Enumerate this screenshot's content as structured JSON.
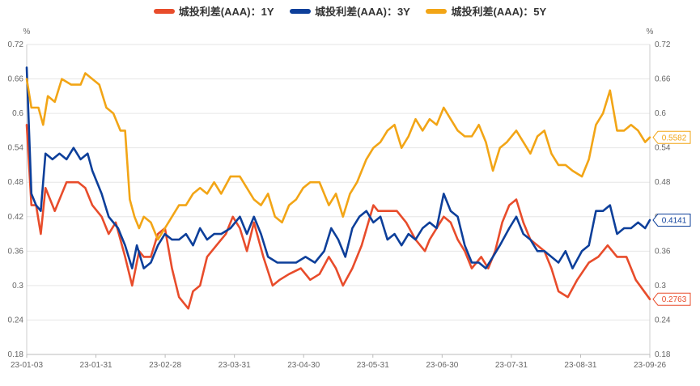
{
  "chart_data": {
    "type": "line",
    "y_unit_left": "%",
    "y_unit_right": "%",
    "ylim": [
      0.18,
      0.72
    ],
    "y_ticks": [
      "0.72",
      "0.66",
      "0.6",
      "0.54",
      "0.48",
      "0.42",
      "0.36",
      "0.3",
      "0.24",
      "0.18"
    ],
    "x_ticks": [
      "23-01-03",
      "23-01-31",
      "23-02-28",
      "23-03-31",
      "23-04-30",
      "23-05-31",
      "23-06-30",
      "23-07-31",
      "23-08-31",
      "23-09-26"
    ],
    "grid": true,
    "legend_position": "top",
    "series": [
      {
        "name": "城投利差(AAA)：1Y",
        "color": "#e84c2b",
        "last_label": "0.2763",
        "values": [
          [
            "2023-01-03",
            0.58
          ],
          [
            "2023-01-05",
            0.44
          ],
          [
            "2023-01-07",
            0.44
          ],
          [
            "2023-01-09",
            0.39
          ],
          [
            "2023-01-11",
            0.47
          ],
          [
            "2023-01-15",
            0.43
          ],
          [
            "2023-01-20",
            0.48
          ],
          [
            "2023-01-25",
            0.48
          ],
          [
            "2023-01-28",
            0.47
          ],
          [
            "2023-01-31",
            0.44
          ],
          [
            "2023-02-04",
            0.42
          ],
          [
            "2023-02-07",
            0.39
          ],
          [
            "2023-02-10",
            0.41
          ],
          [
            "2023-02-14",
            0.35
          ],
          [
            "2023-02-17",
            0.3
          ],
          [
            "2023-02-20",
            0.36
          ],
          [
            "2023-02-22",
            0.35
          ],
          [
            "2023-02-25",
            0.35
          ],
          [
            "2023-02-28",
            0.39
          ],
          [
            "2023-03-03",
            0.4
          ],
          [
            "2023-03-06",
            0.33
          ],
          [
            "2023-03-09",
            0.28
          ],
          [
            "2023-03-11",
            0.27
          ],
          [
            "2023-03-13",
            0.26
          ],
          [
            "2023-03-15",
            0.29
          ],
          [
            "2023-03-18",
            0.3
          ],
          [
            "2023-03-21",
            0.35
          ],
          [
            "2023-03-25",
            0.37
          ],
          [
            "2023-03-29",
            0.39
          ],
          [
            "2023-04-01",
            0.42
          ],
          [
            "2023-04-04",
            0.4
          ],
          [
            "2023-04-07",
            0.36
          ],
          [
            "2023-04-10",
            0.41
          ],
          [
            "2023-04-14",
            0.35
          ],
          [
            "2023-04-18",
            0.3
          ],
          [
            "2023-04-21",
            0.31
          ],
          [
            "2023-04-25",
            0.32
          ],
          [
            "2023-04-30",
            0.33
          ],
          [
            "2023-05-04",
            0.31
          ],
          [
            "2023-05-08",
            0.32
          ],
          [
            "2023-05-12",
            0.35
          ],
          [
            "2023-05-15",
            0.33
          ],
          [
            "2023-05-18",
            0.3
          ],
          [
            "2023-05-22",
            0.33
          ],
          [
            "2023-05-26",
            0.37
          ],
          [
            "2023-05-31",
            0.44
          ],
          [
            "2023-06-02",
            0.43
          ],
          [
            "2023-06-06",
            0.43
          ],
          [
            "2023-06-10",
            0.43
          ],
          [
            "2023-06-14",
            0.41
          ],
          [
            "2023-06-18",
            0.38
          ],
          [
            "2023-06-22",
            0.36
          ],
          [
            "2023-06-24",
            0.38
          ],
          [
            "2023-06-27",
            0.4
          ],
          [
            "2023-06-30",
            0.42
          ],
          [
            "2023-07-03",
            0.41
          ],
          [
            "2023-07-06",
            0.38
          ],
          [
            "2023-07-09",
            0.36
          ],
          [
            "2023-07-12",
            0.33
          ],
          [
            "2023-07-16",
            0.35
          ],
          [
            "2023-07-19",
            0.33
          ],
          [
            "2023-07-22",
            0.36
          ],
          [
            "2023-07-25",
            0.41
          ],
          [
            "2023-07-28",
            0.44
          ],
          [
            "2023-07-31",
            0.45
          ],
          [
            "2023-08-03",
            0.41
          ],
          [
            "2023-08-06",
            0.38
          ],
          [
            "2023-08-09",
            0.37
          ],
          [
            "2023-08-12",
            0.36
          ],
          [
            "2023-08-15",
            0.33
          ],
          [
            "2023-08-18",
            0.29
          ],
          [
            "2023-08-22",
            0.28
          ],
          [
            "2023-08-26",
            0.31
          ],
          [
            "2023-08-31",
            0.34
          ],
          [
            "2023-09-04",
            0.35
          ],
          [
            "2023-09-08",
            0.37
          ],
          [
            "2023-09-12",
            0.35
          ],
          [
            "2023-09-16",
            0.35
          ],
          [
            "2023-09-20",
            0.31
          ],
          [
            "2023-09-26",
            0.2763
          ]
        ]
      },
      {
        "name": "城投利差(AAA)：3Y",
        "color": "#0d3f9a",
        "last_label": "0.4141",
        "values": [
          [
            "2023-01-03",
            0.68
          ],
          [
            "2023-01-05",
            0.46
          ],
          [
            "2023-01-07",
            0.44
          ],
          [
            "2023-01-09",
            0.43
          ],
          [
            "2023-01-11",
            0.53
          ],
          [
            "2023-01-14",
            0.52
          ],
          [
            "2023-01-17",
            0.53
          ],
          [
            "2023-01-20",
            0.52
          ],
          [
            "2023-01-23",
            0.54
          ],
          [
            "2023-01-26",
            0.52
          ],
          [
            "2023-01-29",
            0.53
          ],
          [
            "2023-01-31",
            0.5
          ],
          [
            "2023-02-04",
            0.46
          ],
          [
            "2023-02-07",
            0.42
          ],
          [
            "2023-02-11",
            0.4
          ],
          [
            "2023-02-14",
            0.37
          ],
          [
            "2023-02-17",
            0.33
          ],
          [
            "2023-02-19",
            0.37
          ],
          [
            "2023-02-22",
            0.33
          ],
          [
            "2023-02-25",
            0.34
          ],
          [
            "2023-02-28",
            0.37
          ],
          [
            "2023-03-03",
            0.39
          ],
          [
            "2023-03-06",
            0.38
          ],
          [
            "2023-03-09",
            0.38
          ],
          [
            "2023-03-12",
            0.39
          ],
          [
            "2023-03-15",
            0.37
          ],
          [
            "2023-03-18",
            0.4
          ],
          [
            "2023-03-21",
            0.38
          ],
          [
            "2023-03-24",
            0.39
          ],
          [
            "2023-03-27",
            0.39
          ],
          [
            "2023-03-31",
            0.4
          ],
          [
            "2023-04-04",
            0.42
          ],
          [
            "2023-04-07",
            0.39
          ],
          [
            "2023-04-10",
            0.42
          ],
          [
            "2023-04-13",
            0.39
          ],
          [
            "2023-04-16",
            0.35
          ],
          [
            "2023-04-20",
            0.34
          ],
          [
            "2023-04-24",
            0.34
          ],
          [
            "2023-04-28",
            0.34
          ],
          [
            "2023-05-02",
            0.35
          ],
          [
            "2023-05-06",
            0.34
          ],
          [
            "2023-05-10",
            0.36
          ],
          [
            "2023-05-13",
            0.4
          ],
          [
            "2023-05-16",
            0.38
          ],
          [
            "2023-05-19",
            0.35
          ],
          [
            "2023-05-22",
            0.4
          ],
          [
            "2023-05-25",
            0.42
          ],
          [
            "2023-05-28",
            0.43
          ],
          [
            "2023-05-31",
            0.41
          ],
          [
            "2023-06-03",
            0.42
          ],
          [
            "2023-06-06",
            0.38
          ],
          [
            "2023-06-09",
            0.39
          ],
          [
            "2023-06-12",
            0.37
          ],
          [
            "2023-06-15",
            0.39
          ],
          [
            "2023-06-18",
            0.38
          ],
          [
            "2023-06-21",
            0.4
          ],
          [
            "2023-06-24",
            0.41
          ],
          [
            "2023-06-27",
            0.4
          ],
          [
            "2023-06-30",
            0.46
          ],
          [
            "2023-07-03",
            0.43
          ],
          [
            "2023-07-06",
            0.42
          ],
          [
            "2023-07-09",
            0.37
          ],
          [
            "2023-07-12",
            0.34
          ],
          [
            "2023-07-15",
            0.34
          ],
          [
            "2023-07-18",
            0.33
          ],
          [
            "2023-07-21",
            0.35
          ],
          [
            "2023-07-24",
            0.37
          ],
          [
            "2023-07-28",
            0.4
          ],
          [
            "2023-07-31",
            0.42
          ],
          [
            "2023-08-03",
            0.39
          ],
          [
            "2023-08-06",
            0.38
          ],
          [
            "2023-08-09",
            0.36
          ],
          [
            "2023-08-12",
            0.36
          ],
          [
            "2023-08-15",
            0.35
          ],
          [
            "2023-08-18",
            0.34
          ],
          [
            "2023-08-21",
            0.36
          ],
          [
            "2023-08-24",
            0.33
          ],
          [
            "2023-08-28",
            0.36
          ],
          [
            "2023-08-31",
            0.37
          ],
          [
            "2023-09-03",
            0.43
          ],
          [
            "2023-09-06",
            0.43
          ],
          [
            "2023-09-09",
            0.44
          ],
          [
            "2023-09-12",
            0.39
          ],
          [
            "2023-09-15",
            0.4
          ],
          [
            "2023-09-18",
            0.4
          ],
          [
            "2023-09-21",
            0.41
          ],
          [
            "2023-09-24",
            0.4
          ],
          [
            "2023-09-26",
            0.4141
          ]
        ]
      },
      {
        "name": "城投利差(AAA)：5Y",
        "color": "#f2a516",
        "last_label": "0.5582",
        "values": [
          [
            "2023-01-03",
            0.66
          ],
          [
            "2023-01-05",
            0.61
          ],
          [
            "2023-01-08",
            0.61
          ],
          [
            "2023-01-10",
            0.58
          ],
          [
            "2023-01-12",
            0.63
          ],
          [
            "2023-01-15",
            0.62
          ],
          [
            "2023-01-18",
            0.66
          ],
          [
            "2023-01-22",
            0.65
          ],
          [
            "2023-01-26",
            0.65
          ],
          [
            "2023-01-28",
            0.67
          ],
          [
            "2023-01-31",
            0.66
          ],
          [
            "2023-02-03",
            0.65
          ],
          [
            "2023-02-06",
            0.61
          ],
          [
            "2023-02-09",
            0.6
          ],
          [
            "2023-02-12",
            0.57
          ],
          [
            "2023-02-14",
            0.57
          ],
          [
            "2023-02-16",
            0.45
          ],
          [
            "2023-02-18",
            0.42
          ],
          [
            "2023-02-20",
            0.4
          ],
          [
            "2023-02-22",
            0.42
          ],
          [
            "2023-02-25",
            0.41
          ],
          [
            "2023-02-28",
            0.38
          ],
          [
            "2023-03-03",
            0.4
          ],
          [
            "2023-03-06",
            0.42
          ],
          [
            "2023-03-09",
            0.44
          ],
          [
            "2023-03-12",
            0.44
          ],
          [
            "2023-03-15",
            0.46
          ],
          [
            "2023-03-18",
            0.47
          ],
          [
            "2023-03-21",
            0.46
          ],
          [
            "2023-03-24",
            0.48
          ],
          [
            "2023-03-27",
            0.46
          ],
          [
            "2023-03-31",
            0.49
          ],
          [
            "2023-04-04",
            0.49
          ],
          [
            "2023-04-07",
            0.47
          ],
          [
            "2023-04-10",
            0.45
          ],
          [
            "2023-04-13",
            0.44
          ],
          [
            "2023-04-16",
            0.46
          ],
          [
            "2023-04-19",
            0.42
          ],
          [
            "2023-04-22",
            0.41
          ],
          [
            "2023-04-25",
            0.44
          ],
          [
            "2023-04-28",
            0.45
          ],
          [
            "2023-05-01",
            0.47
          ],
          [
            "2023-05-04",
            0.48
          ],
          [
            "2023-05-08",
            0.48
          ],
          [
            "2023-05-12",
            0.44
          ],
          [
            "2023-05-15",
            0.46
          ],
          [
            "2023-05-18",
            0.42
          ],
          [
            "2023-05-21",
            0.46
          ],
          [
            "2023-05-24",
            0.48
          ],
          [
            "2023-05-28",
            0.52
          ],
          [
            "2023-05-31",
            0.54
          ],
          [
            "2023-06-03",
            0.55
          ],
          [
            "2023-06-06",
            0.57
          ],
          [
            "2023-06-09",
            0.58
          ],
          [
            "2023-06-12",
            0.54
          ],
          [
            "2023-06-15",
            0.56
          ],
          [
            "2023-06-18",
            0.59
          ],
          [
            "2023-06-21",
            0.57
          ],
          [
            "2023-06-24",
            0.59
          ],
          [
            "2023-06-27",
            0.58
          ],
          [
            "2023-06-30",
            0.61
          ],
          [
            "2023-07-03",
            0.59
          ],
          [
            "2023-07-06",
            0.57
          ],
          [
            "2023-07-09",
            0.56
          ],
          [
            "2023-07-12",
            0.56
          ],
          [
            "2023-07-15",
            0.58
          ],
          [
            "2023-07-18",
            0.55
          ],
          [
            "2023-07-21",
            0.5
          ],
          [
            "2023-07-24",
            0.54
          ],
          [
            "2023-07-27",
            0.55
          ],
          [
            "2023-07-31",
            0.57
          ],
          [
            "2023-08-03",
            0.55
          ],
          [
            "2023-08-06",
            0.53
          ],
          [
            "2023-08-09",
            0.56
          ],
          [
            "2023-08-12",
            0.57
          ],
          [
            "2023-08-15",
            0.53
          ],
          [
            "2023-08-18",
            0.51
          ],
          [
            "2023-08-21",
            0.51
          ],
          [
            "2023-08-24",
            0.5
          ],
          [
            "2023-08-28",
            0.49
          ],
          [
            "2023-08-31",
            0.52
          ],
          [
            "2023-09-03",
            0.58
          ],
          [
            "2023-09-06",
            0.6
          ],
          [
            "2023-09-09",
            0.64
          ],
          [
            "2023-09-12",
            0.57
          ],
          [
            "2023-09-15",
            0.57
          ],
          [
            "2023-09-18",
            0.58
          ],
          [
            "2023-09-21",
            0.57
          ],
          [
            "2023-09-24",
            0.55
          ],
          [
            "2023-09-26",
            0.5582
          ]
        ]
      }
    ]
  }
}
